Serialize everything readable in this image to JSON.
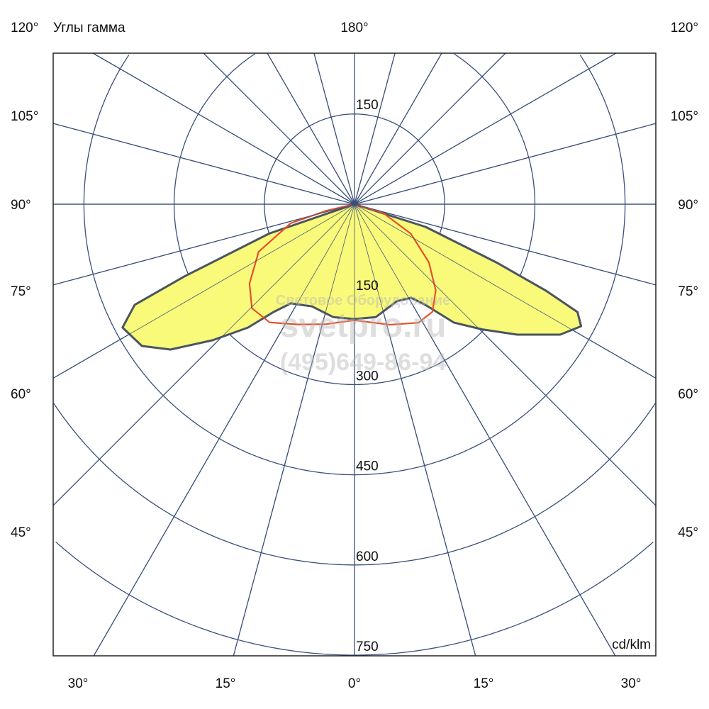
{
  "chart_data": {
    "type": "polar",
    "title": "Углы гамма",
    "unit_label": "cd/klm",
    "radial_ticks": [
      150,
      300,
      450,
      600,
      750
    ],
    "radial_range": [
      0,
      750
    ],
    "angle_grid_step_deg": 15,
    "grid": true,
    "top_label": "180°",
    "side_labels": [
      "120°",
      "105°",
      "90°",
      "75°",
      "60°",
      "45°"
    ],
    "bottom_labels": [
      "30°",
      "15°",
      "0°",
      "15°",
      "30°"
    ],
    "colors": {
      "grid": "#3a4f7a",
      "fill": "#f9f97a",
      "outline": "#4a5560",
      "red": "#e4502c"
    },
    "series": [
      {
        "color": "#4a5560",
        "fill": "#f9f97a",
        "points": [
          [
            -90,
            0
          ],
          [
            -71,
            150
          ],
          [
            -67,
            307
          ],
          [
            -65.4,
            402
          ],
          [
            -62,
            437
          ],
          [
            -56.3,
            425
          ],
          [
            -51.7,
            390
          ],
          [
            -46.2,
            327
          ],
          [
            -40.8,
            271
          ],
          [
            -37,
            225
          ],
          [
            -32.7,
            196
          ],
          [
            -22.6,
            184
          ],
          [
            -10.7,
            191
          ],
          [
            0,
            191
          ],
          [
            10.7,
            191
          ],
          [
            23.6,
            176
          ],
          [
            31.2,
            182
          ],
          [
            35.2,
            205
          ],
          [
            40,
            257
          ],
          [
            45.5,
            297
          ],
          [
            51.3,
            347
          ],
          [
            57.6,
            405
          ],
          [
            61.7,
            428
          ],
          [
            64.2,
            412
          ],
          [
            65.7,
            349
          ],
          [
            67.7,
            255
          ],
          [
            72.3,
            124
          ],
          [
            90,
            0
          ]
        ]
      },
      {
        "color": "#e4502c",
        "points": [
          [
            -90,
            0
          ],
          [
            -77,
            48
          ],
          [
            -73.3,
            111
          ],
          [
            -63.6,
            178
          ],
          [
            -52.9,
            219
          ],
          [
            -44.6,
            243
          ],
          [
            -35.7,
            242
          ],
          [
            -25.2,
            221
          ],
          [
            -13.3,
            205
          ],
          [
            0,
            193
          ],
          [
            16.4,
            209
          ],
          [
            28.3,
            224
          ],
          [
            35.9,
            221
          ],
          [
            43.3,
            197
          ],
          [
            52,
            157
          ],
          [
            62.3,
            106
          ],
          [
            73.3,
            49
          ],
          [
            90,
            0
          ]
        ]
      }
    ]
  },
  "watermark": {
    "line1": "Световое Оборудование",
    "line2": "svetpro.ru",
    "line3": "(495)649-86-94"
  }
}
